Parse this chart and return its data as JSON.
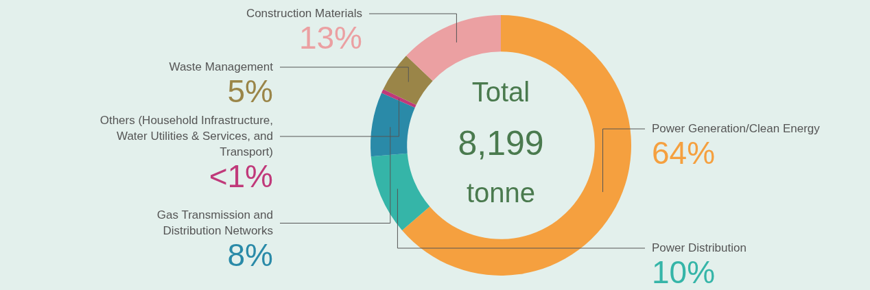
{
  "chart_data": {
    "type": "donut",
    "categories": [
      "Power Generation/Clean Energy",
      "Power Distribution",
      "Gas Transmission and Distribution Networks",
      "Others (Household Infrastructure, Water Utilities & Services, and Transport)",
      "Waste Management",
      "Construction Materials"
    ],
    "values": [
      64,
      10,
      8,
      0.5,
      5,
      13
    ],
    "value_labels": [
      "64%",
      "10%",
      "8%",
      "<1%",
      "5%",
      "13%"
    ],
    "colors": [
      "#f5a03f",
      "#35b5a8",
      "#2a8aa8",
      "#c0397a",
      "#9a8548",
      "#eba0a2"
    ],
    "annotations": [
      "Total",
      "8,199",
      "tonne"
    ],
    "legend": false
  }
}
